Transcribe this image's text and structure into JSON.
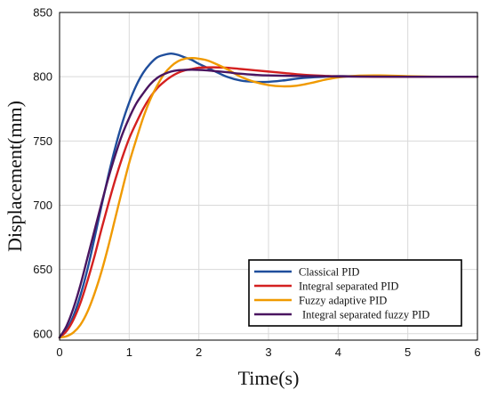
{
  "chart_data": {
    "type": "line",
    "title": "",
    "xlabel": "Time(s)",
    "ylabel": "Displacement(mm)",
    "xlim": [
      0,
      6
    ],
    "ylim": [
      595,
      850
    ],
    "xticks": [
      0,
      1,
      2,
      3,
      4,
      5,
      6
    ],
    "yticks": [
      600,
      650,
      700,
      750,
      800,
      850
    ],
    "grid": true,
    "legend_position": "bottom-right",
    "series": [
      {
        "name": "Classical PID",
        "color": "#1f4e9c",
        "x": [
          0,
          0.1,
          0.2,
          0.3,
          0.4,
          0.5,
          0.6,
          0.7,
          0.8,
          0.9,
          1.0,
          1.1,
          1.2,
          1.3,
          1.4,
          1.5,
          1.6,
          1.7,
          1.8,
          1.9,
          2.0,
          2.2,
          2.4,
          2.6,
          2.8,
          3.0,
          3.2,
          3.5,
          3.8,
          4.0,
          4.3,
          4.6,
          5.0,
          5.5,
          6.0
        ],
        "values": [
          597,
          603,
          614,
          630,
          650,
          674,
          699,
          723,
          745,
          764,
          780,
          793,
          803,
          810,
          815,
          817,
          818,
          817,
          815,
          813,
          810,
          805,
          800,
          797,
          796,
          796,
          797,
          799,
          800,
          800.5,
          800.4,
          800.1,
          800,
          800,
          800
        ]
      },
      {
        "name": "Integral separated PID",
        "color": "#d42020",
        "x": [
          0,
          0.1,
          0.2,
          0.3,
          0.4,
          0.5,
          0.6,
          0.7,
          0.8,
          0.9,
          1.0,
          1.1,
          1.2,
          1.3,
          1.4,
          1.5,
          1.6,
          1.7,
          1.8,
          1.9,
          2.0,
          2.2,
          2.4,
          2.6,
          2.8,
          3.0,
          3.2,
          3.5,
          3.8,
          4.0,
          4.5,
          5.0,
          5.5,
          6.0
        ],
        "values": [
          597,
          602,
          611,
          624,
          641,
          660,
          681,
          701,
          720,
          737,
          752,
          764,
          775,
          784,
          791,
          796,
          800,
          803,
          805,
          806,
          807,
          807.3,
          807,
          806,
          805,
          804,
          803,
          801.5,
          800.7,
          800.3,
          800,
          800,
          800,
          800
        ]
      },
      {
        "name": "Fuzzy adaptive PID",
        "color": "#f09a00",
        "x": [
          0,
          0.1,
          0.2,
          0.3,
          0.4,
          0.5,
          0.6,
          0.7,
          0.8,
          0.9,
          1.0,
          1.1,
          1.2,
          1.3,
          1.4,
          1.5,
          1.6,
          1.7,
          1.8,
          1.9,
          2.0,
          2.1,
          2.2,
          2.4,
          2.6,
          2.8,
          3.0,
          3.2,
          3.4,
          3.6,
          3.8,
          4.0,
          4.3,
          4.6,
          5.0,
          5.5,
          6.0
        ],
        "values": [
          597,
          598,
          601,
          607,
          617,
          631,
          648,
          668,
          690,
          712,
          733,
          751,
          768,
          782,
          793,
          802,
          808,
          812,
          814,
          814.5,
          814,
          813,
          811,
          806,
          800,
          796,
          793.5,
          792.5,
          793,
          795,
          797.5,
          799.5,
          800.8,
          801,
          800.4,
          800,
          800
        ]
      },
      {
        "name": "Integral separated fuzzy PID",
        "color": "#4a1560",
        "x": [
          0,
          0.1,
          0.2,
          0.3,
          0.4,
          0.5,
          0.6,
          0.7,
          0.8,
          0.9,
          1.0,
          1.1,
          1.2,
          1.3,
          1.4,
          1.5,
          1.6,
          1.7,
          1.8,
          1.9,
          2.0,
          2.1,
          2.2,
          2.4,
          2.6,
          2.8,
          3.0,
          3.5,
          4.0,
          5.0,
          6.0
        ],
        "values": [
          597,
          606,
          620,
          638,
          659,
          680,
          701,
          721,
          739,
          755,
          768,
          779,
          787,
          794,
          799,
          802,
          804,
          805,
          805.3,
          805.4,
          805.3,
          805,
          804.5,
          803.5,
          802.3,
          801.5,
          801,
          800.5,
          800.2,
          800,
          800
        ]
      }
    ]
  }
}
